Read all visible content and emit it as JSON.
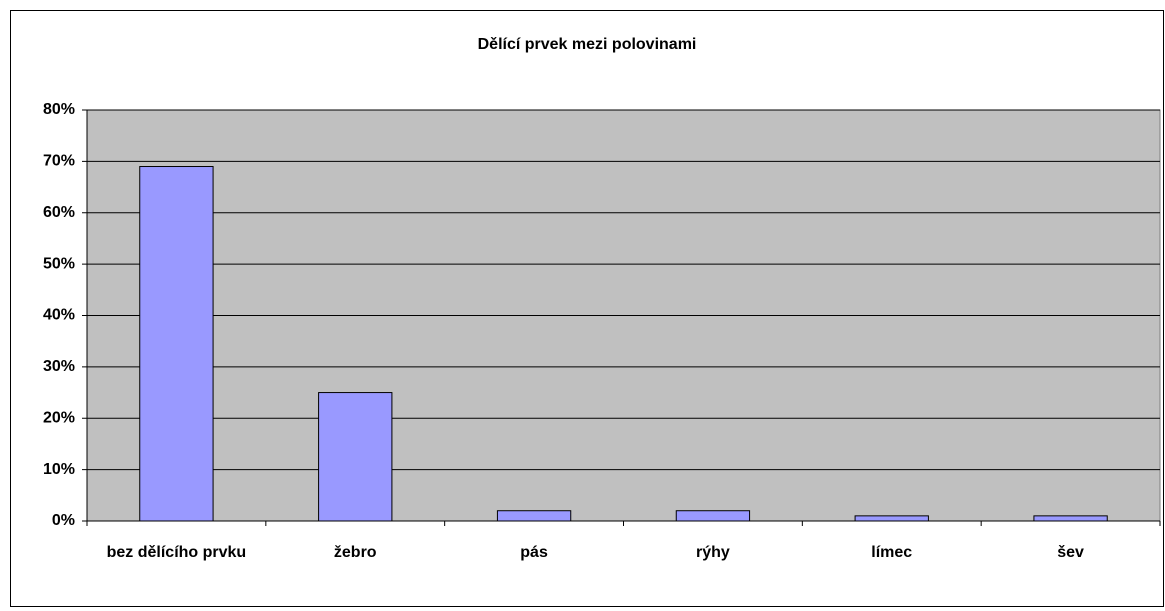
{
  "chart_data": {
    "type": "bar",
    "title": "Dělící prvek mezi polovinami",
    "categories": [
      "bez dělícího prvku",
      "žebro",
      "pás",
      "rýhy",
      "límec",
      "šev"
    ],
    "values": [
      69,
      25,
      2,
      2,
      1,
      1
    ],
    "color": "#9999ff",
    "ylim": [
      0,
      80
    ],
    "yticks": [
      {
        "value": 0,
        "label": "0%"
      },
      {
        "value": 10,
        "label": "10%"
      },
      {
        "value": 20,
        "label": "20%"
      },
      {
        "value": 30,
        "label": "30%"
      },
      {
        "value": 40,
        "label": "40%"
      },
      {
        "value": 50,
        "label": "50%"
      },
      {
        "value": 60,
        "label": "60%"
      },
      {
        "value": 70,
        "label": "70%"
      },
      {
        "value": 80,
        "label": "80%"
      }
    ],
    "grid": true
  }
}
